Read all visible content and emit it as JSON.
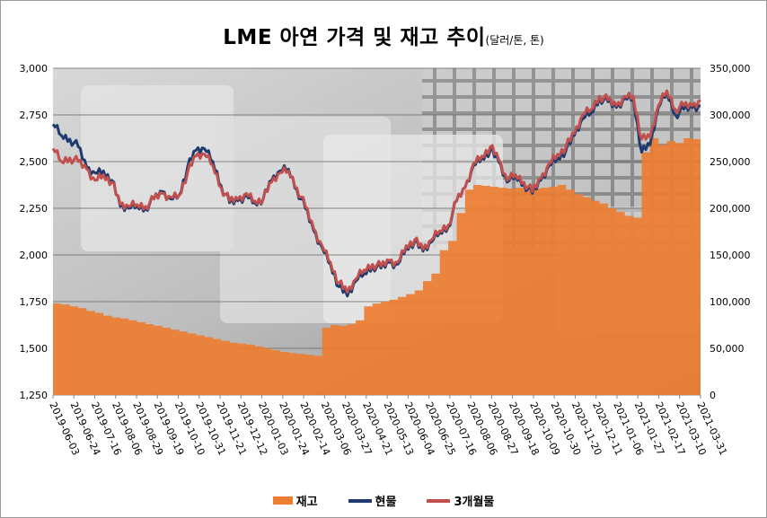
{
  "title": "LME 아연 가격 및 재고 추이",
  "title_unit": "(달러/톤, 톤)",
  "chart_data": {
    "type": "line",
    "left_axis": {
      "ylim": [
        1250,
        3000
      ],
      "ticks": [
        "1,250",
        "1,500",
        "1,750",
        "2,000",
        "2,250",
        "2,500",
        "2,750",
        "3,000"
      ]
    },
    "right_axis": {
      "ylim": [
        0,
        350000
      ],
      "ticks": [
        "0",
        "50,000",
        "100,000",
        "150,000",
        "200,000",
        "250,000",
        "300,000",
        "350,000"
      ]
    },
    "x_ticks": [
      "2019-06-03",
      "2019-06-24",
      "2019-07-16",
      "2019-08-06",
      "2019-08-29",
      "2019-09-19",
      "2019-10-10",
      "2019-10-31",
      "2019-11-21",
      "2019-12-12",
      "2020-01-03",
      "2020-01-24",
      "2020-02-14",
      "2020-03-06",
      "2020-03-27",
      "2020-04-21",
      "2020-05-13",
      "2020-06-04",
      "2020-06-25",
      "2020-07-16",
      "2020-08-06",
      "2020-08-27",
      "2020-09-18",
      "2020-10-09",
      "2020-10-30",
      "2020-11-20",
      "2020-12-11",
      "2021-01-06",
      "2021-01-27",
      "2021-02-17",
      "2021-03-10",
      "2021-03-31"
    ],
    "grid": true,
    "legend_position": "bottom",
    "series": [
      {
        "name": "재고",
        "type": "area",
        "axis": "right",
        "color": "#ED7D31",
        "values": [
          98000,
          97000,
          95000,
          93000,
          90000,
          88000,
          85000,
          83000,
          82000,
          80000,
          78000,
          76000,
          74000,
          72000,
          70000,
          68000,
          66000,
          64000,
          62000,
          60000,
          58000,
          56000,
          55000,
          54000,
          52000,
          50000,
          48000,
          46000,
          45000,
          44000,
          43000,
          42000,
          72000,
          75000,
          74000,
          76000,
          80000,
          95000,
          98000,
          100000,
          102000,
          105000,
          108000,
          112000,
          122000,
          130000,
          155000,
          165000,
          195000,
          220000,
          225000,
          224000,
          223000,
          222000,
          221000,
          222000,
          220000,
          221000,
          222000,
          223000,
          225000,
          220000,
          215000,
          212000,
          208000,
          205000,
          200000,
          196000,
          192000,
          190000,
          260000,
          275000,
          268000,
          272000,
          270000,
          275000,
          274000,
          268000
        ]
      },
      {
        "name": "현물",
        "type": "line",
        "axis": "left",
        "color": "#1F3A6E",
        "values": [
          2700,
          2640,
          2620,
          2580,
          2470,
          2440,
          2450,
          2400,
          2260,
          2250,
          2260,
          2250,
          2300,
          2340,
          2300,
          2320,
          2470,
          2560,
          2570,
          2500,
          2370,
          2280,
          2290,
          2320,
          2280,
          2300,
          2400,
          2450,
          2460,
          2350,
          2250,
          2130,
          2040,
          1950,
          1830,
          1780,
          1860,
          1900,
          1940,
          1930,
          1960,
          1950,
          2040,
          2070,
          2020,
          2070,
          2120,
          2150,
          2290,
          2360,
          2480,
          2520,
          2560,
          2500,
          2390,
          2420,
          2380,
          2330,
          2400,
          2480,
          2520,
          2560,
          2640,
          2730,
          2760,
          2840,
          2820,
          2790,
          2840,
          2840,
          2550,
          2590,
          2790,
          2870,
          2750,
          2780,
          2790,
          2800
        ]
      },
      {
        "name": "3개월물",
        "type": "line",
        "axis": "left",
        "color": "#C0504D",
        "values": [
          2570,
          2500,
          2520,
          2500,
          2460,
          2400,
          2430,
          2390,
          2270,
          2260,
          2270,
          2260,
          2300,
          2330,
          2310,
          2320,
          2440,
          2530,
          2540,
          2480,
          2360,
          2290,
          2300,
          2330,
          2290,
          2300,
          2390,
          2440,
          2450,
          2360,
          2260,
          2140,
          2050,
          1960,
          1850,
          1800,
          1870,
          1920,
          1950,
          1940,
          1970,
          1960,
          2050,
          2080,
          2030,
          2080,
          2130,
          2160,
          2290,
          2360,
          2490,
          2530,
          2580,
          2510,
          2400,
          2430,
          2390,
          2340,
          2410,
          2490,
          2540,
          2580,
          2650,
          2750,
          2780,
          2850,
          2830,
          2800,
          2850,
          2850,
          2620,
          2630,
          2800,
          2880,
          2780,
          2800,
          2800,
          2830
        ]
      }
    ]
  },
  "legend": [
    {
      "label": "재고",
      "color": "#ED7D31",
      "kind": "area"
    },
    {
      "label": "현물",
      "color": "#1F3A6E",
      "kind": "line"
    },
    {
      "label": "3개월물",
      "color": "#C0504D",
      "kind": "line"
    }
  ]
}
